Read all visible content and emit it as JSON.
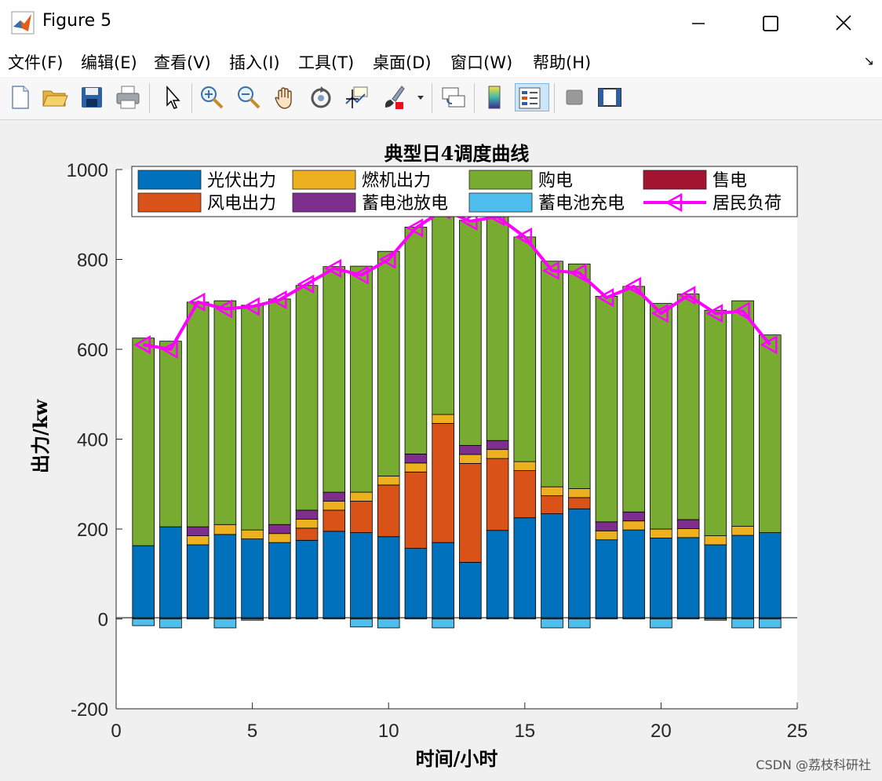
{
  "window": {
    "title": "Figure 5"
  },
  "menu": [
    "文件(F)",
    "编辑(E)",
    "查看(V)",
    "插入(I)",
    "工具(T)",
    "桌面(D)",
    "窗口(W)",
    "帮助(H)"
  ],
  "toolbar_icons": [
    "new-file-icon",
    "open-folder-icon",
    "save-icon",
    "print-icon",
    "pointer-icon",
    "zoom-in-icon",
    "zoom-out-icon",
    "pan-icon",
    "rotate-3d-icon",
    "data-cursor-icon",
    "brush-icon",
    "brush-dropdown-icon",
    "link-plot-icon",
    "colorbar-icon",
    "legend-icon",
    "hide-plot-tools-icon",
    "show-plot-tools-icon"
  ],
  "watermark": "CSDN @荔枝科研社",
  "chart_data": {
    "type": "bar",
    "title": "典型日4调度曲线",
    "xlabel": "时间/小时",
    "ylabel": "出力/kw",
    "xlim": [
      0,
      25
    ],
    "ylim": [
      -200,
      1000
    ],
    "xticks": [
      0,
      5,
      10,
      15,
      20,
      25
    ],
    "yticks": [
      -200,
      0,
      200,
      400,
      600,
      800,
      1000
    ],
    "grid": false,
    "legend_position": "top",
    "stacked": true,
    "x": [
      1,
      2,
      3,
      4,
      5,
      6,
      7,
      8,
      9,
      10,
      11,
      12,
      13,
      14,
      15,
      16,
      17,
      18,
      19,
      20,
      21,
      22,
      23,
      24
    ],
    "series": [
      {
        "name": "光伏出力",
        "color": "#0072BD",
        "values": [
          163,
          205,
          165,
          188,
          178,
          170,
          175,
          195,
          192,
          183,
          157,
          170,
          126,
          197,
          225,
          234,
          245,
          176,
          198,
          180,
          181,
          165,
          186,
          192
        ]
      },
      {
        "name": "风电出力",
        "color": "#D95319",
        "values": [
          0,
          0,
          0,
          0,
          0,
          0,
          27,
          47,
          70,
          115,
          170,
          265,
          220,
          160,
          105,
          40,
          25,
          0,
          0,
          0,
          0,
          0,
          0,
          0
        ]
      },
      {
        "name": "燃机出力",
        "color": "#EDB120",
        "values": [
          0,
          0,
          20,
          22,
          20,
          20,
          20,
          20,
          20,
          20,
          20,
          20,
          20,
          20,
          20,
          20,
          20,
          20,
          20,
          20,
          20,
          20,
          20,
          0
        ]
      },
      {
        "name": "蓄电池放电",
        "color": "#7E2F8E",
        "values": [
          0,
          0,
          20,
          0,
          0,
          20,
          20,
          20,
          0,
          0,
          20,
          0,
          20,
          20,
          0,
          0,
          0,
          20,
          20,
          0,
          20,
          0,
          0,
          0
        ]
      },
      {
        "name": "购电",
        "color": "#77AC30",
        "values": [
          462,
          413,
          500,
          498,
          500,
          502,
          500,
          502,
          503,
          500,
          505,
          493,
          501,
          500,
          500,
          502,
          500,
          502,
          502,
          502,
          502,
          502,
          502,
          440
        ]
      },
      {
        "name": "售电",
        "color": "#A2142F",
        "values": [
          0,
          0,
          0,
          0,
          0,
          0,
          0,
          0,
          0,
          0,
          0,
          0,
          0,
          0,
          0,
          0,
          0,
          0,
          0,
          0,
          0,
          0,
          0,
          0
        ]
      },
      {
        "name": "蓄电池充电",
        "color": "#4DBEEE",
        "values": [
          -15,
          -20,
          0,
          -20,
          -3,
          0,
          0,
          0,
          -18,
          -20,
          0,
          -20,
          0,
          0,
          0,
          -20,
          -20,
          0,
          0,
          -20,
          0,
          -3,
          -20,
          -20
        ]
      }
    ],
    "line_series": {
      "name": "居民负荷",
      "color": "#FF00FF",
      "marker": "left-triangle",
      "x": [
        1,
        2,
        3,
        4,
        5,
        6,
        7,
        8,
        9,
        10,
        11,
        12,
        13,
        14,
        15,
        16,
        17,
        18,
        19,
        20,
        21,
        22,
        23,
        24
      ],
      "values": [
        610,
        600,
        705,
        690,
        695,
        710,
        745,
        780,
        765,
        800,
        870,
        910,
        885,
        895,
        850,
        775,
        770,
        715,
        740,
        680,
        720,
        680,
        685,
        610
      ]
    },
    "legend_order": [
      "光伏出力",
      "燃机出力",
      "购电",
      "售电",
      "风电出力",
      "蓄电池放电",
      "蓄电池充电",
      "居民负荷"
    ]
  }
}
